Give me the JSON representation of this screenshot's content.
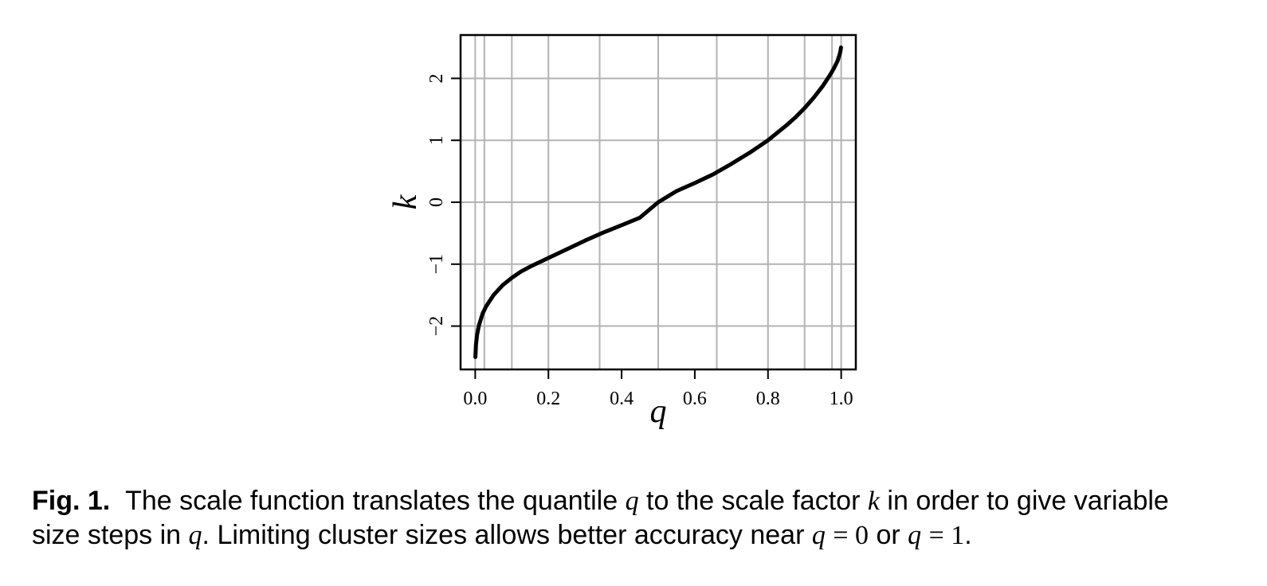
{
  "chart_data": {
    "type": "line",
    "xlabel": "q",
    "ylabel": "k",
    "xlim": [
      -0.04,
      1.04
    ],
    "ylim": [
      -2.7,
      2.7
    ],
    "x_ticks": [
      0.0,
      0.2,
      0.4,
      0.6,
      0.8,
      1.0
    ],
    "x_tick_labels": [
      "0.0",
      "0.2",
      "0.4",
      "0.6",
      "0.8",
      "1.0"
    ],
    "y_ticks": [
      -2,
      -1,
      0,
      1,
      2
    ],
    "y_tick_labels": [
      "−2",
      "−1",
      "0",
      "1",
      "2"
    ],
    "grid": true,
    "x_gridlines": [
      0.0,
      0.025,
      0.1,
      0.2,
      0.34,
      0.5,
      0.66,
      0.8,
      0.9,
      0.975,
      1.0
    ],
    "y_gridlines": [
      -2,
      -1,
      0,
      1,
      2
    ],
    "series": [
      {
        "x": [
          0.0005,
          0.002,
          0.005,
          0.01,
          0.02,
          0.03,
          0.05,
          0.075,
          0.1,
          0.125,
          0.15,
          0.2,
          0.25,
          0.3,
          0.35,
          0.4,
          0.45,
          0.5,
          0.55,
          0.6,
          0.65,
          0.7,
          0.75,
          0.8,
          0.85,
          0.875,
          0.9,
          0.925,
          0.95,
          0.97,
          0.98,
          0.99,
          0.995,
          0.998,
          0.9995
        ],
        "y": [
          -2.5,
          -2.3,
          -2.14,
          -1.99,
          -1.8,
          -1.68,
          -1.5,
          -1.34,
          -1.22,
          -1.12,
          -1.04,
          -0.9,
          -0.76,
          -0.62,
          -0.49,
          -0.37,
          -0.25,
          0.0,
          0.18,
          0.31,
          0.45,
          0.62,
          0.8,
          1.0,
          1.24,
          1.37,
          1.52,
          1.69,
          1.88,
          2.06,
          2.16,
          2.28,
          2.37,
          2.44,
          2.5
        ],
        "color": "#000000"
      }
    ]
  },
  "caption": {
    "label": "Fig. 1.",
    "line1_a": "The scale function translates the quantile",
    "line1_q": "q",
    "line1_b": "to the scale factor",
    "line1_k": "k",
    "line1_c": "in order to give variable",
    "line2_a": "size steps in",
    "line2_q1": "q",
    "line2_b": ". Limiting cluster sizes allows better accuracy near",
    "line2_q2": "q",
    "line2_eq1": "= 0",
    "line2_or": "or",
    "line2_q3": "q",
    "line2_eq2": "= 1",
    "line2_end": "."
  }
}
